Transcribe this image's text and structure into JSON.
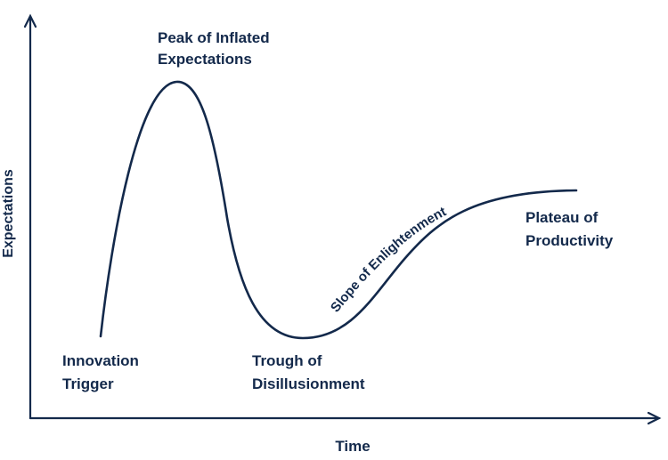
{
  "colors": {
    "ink": "#13294b",
    "background": "#ffffff"
  },
  "axes": {
    "x_label": "Time",
    "y_label": "Expectations",
    "arrow_style": "open chevron tips"
  },
  "phases": [
    {
      "key": "innovation_trigger",
      "lines": [
        "Innovation",
        "Trigger"
      ]
    },
    {
      "key": "peak",
      "lines": [
        "Peak of Inflated",
        "Expectations"
      ]
    },
    {
      "key": "trough",
      "lines": [
        "Trough of",
        "Disillusionment"
      ]
    },
    {
      "key": "slope",
      "lines": [
        "Slope of Enlightenment"
      ]
    },
    {
      "key": "plateau",
      "lines": [
        "Plateau of",
        "Productivity"
      ]
    }
  ]
}
